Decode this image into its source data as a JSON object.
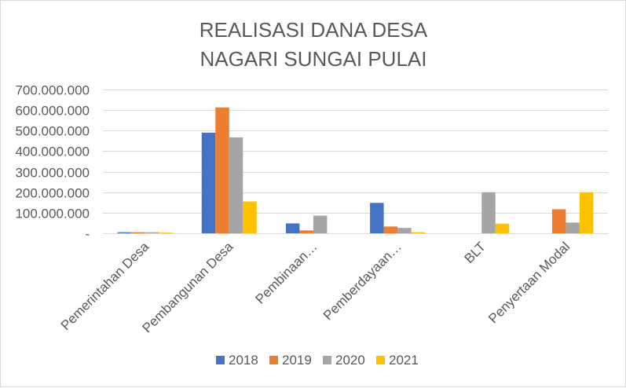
{
  "chart_data": {
    "type": "bar",
    "title_lines": [
      "REALISASI DANA DESA",
      "NAGARI SUNGAI PULAI"
    ],
    "categories": [
      "Pemerintahan Desa",
      "Pembangunan Desa",
      "Pembinaan…",
      "Pemberdayaan…",
      "BLT",
      "Penyertaan Modal"
    ],
    "series": [
      {
        "name": "2018",
        "color": "#4472c4",
        "values": [
          5000000,
          490000000,
          48000000,
          148000000,
          0,
          0
        ]
      },
      {
        "name": "2019",
        "color": "#ed7d31",
        "values": [
          5000000,
          613000000,
          14000000,
          33000000,
          0,
          117000000
        ]
      },
      {
        "name": "2020",
        "color": "#a5a5a5",
        "values": [
          5000000,
          467000000,
          86000000,
          26000000,
          200000000,
          52000000
        ]
      },
      {
        "name": "2021",
        "color": "#ffc000",
        "values": [
          3000000,
          155000000,
          0,
          5000000,
          47000000,
          200000000
        ]
      }
    ],
    "ylim": [
      0,
      700000000
    ],
    "yticks": [
      0,
      100000000,
      200000000,
      300000000,
      400000000,
      500000000,
      600000000,
      700000000
    ],
    "ytick_labels": [
      "-",
      "100.000.000",
      "200.000.000",
      "300.000.000",
      "400.000.000",
      "500.000.000",
      "600.000.000",
      "700.000.000"
    ],
    "grid": true,
    "legend": "bottom"
  }
}
